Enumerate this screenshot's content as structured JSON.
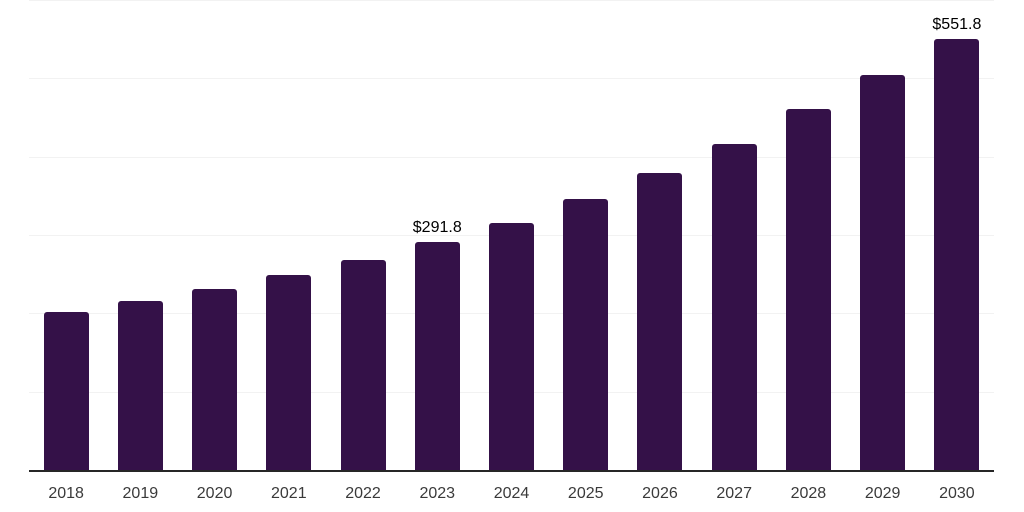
{
  "chart_data": {
    "type": "bar",
    "title": "",
    "xlabel": "",
    "ylabel": "",
    "categories": [
      "2018",
      "2019",
      "2020",
      "2021",
      "2022",
      "2023",
      "2024",
      "2025",
      "2026",
      "2027",
      "2028",
      "2029",
      "2030"
    ],
    "values": [
      203.0,
      217.2,
      232.4,
      250.5,
      269.3,
      291.8,
      317.0,
      347.0,
      381.0,
      417.4,
      462.0,
      505.4,
      551.8
    ],
    "data_labels": [
      {
        "index": 5,
        "text": "$291.8"
      },
      {
        "index": 12,
        "text": "$551.8"
      }
    ],
    "value_prefix": "$",
    "ylim": [
      0,
      600
    ],
    "gridline_step": 100,
    "grid": "horizontal-only",
    "legend": "none",
    "y_axis_tick_labels": "none",
    "colors": {
      "bar": "#341148",
      "gridline": "#f2f2f2",
      "axis_line": "#262626",
      "x_label_text": "#3a3a3a",
      "data_label_text": "#000000",
      "background": "#ffffff"
    }
  }
}
